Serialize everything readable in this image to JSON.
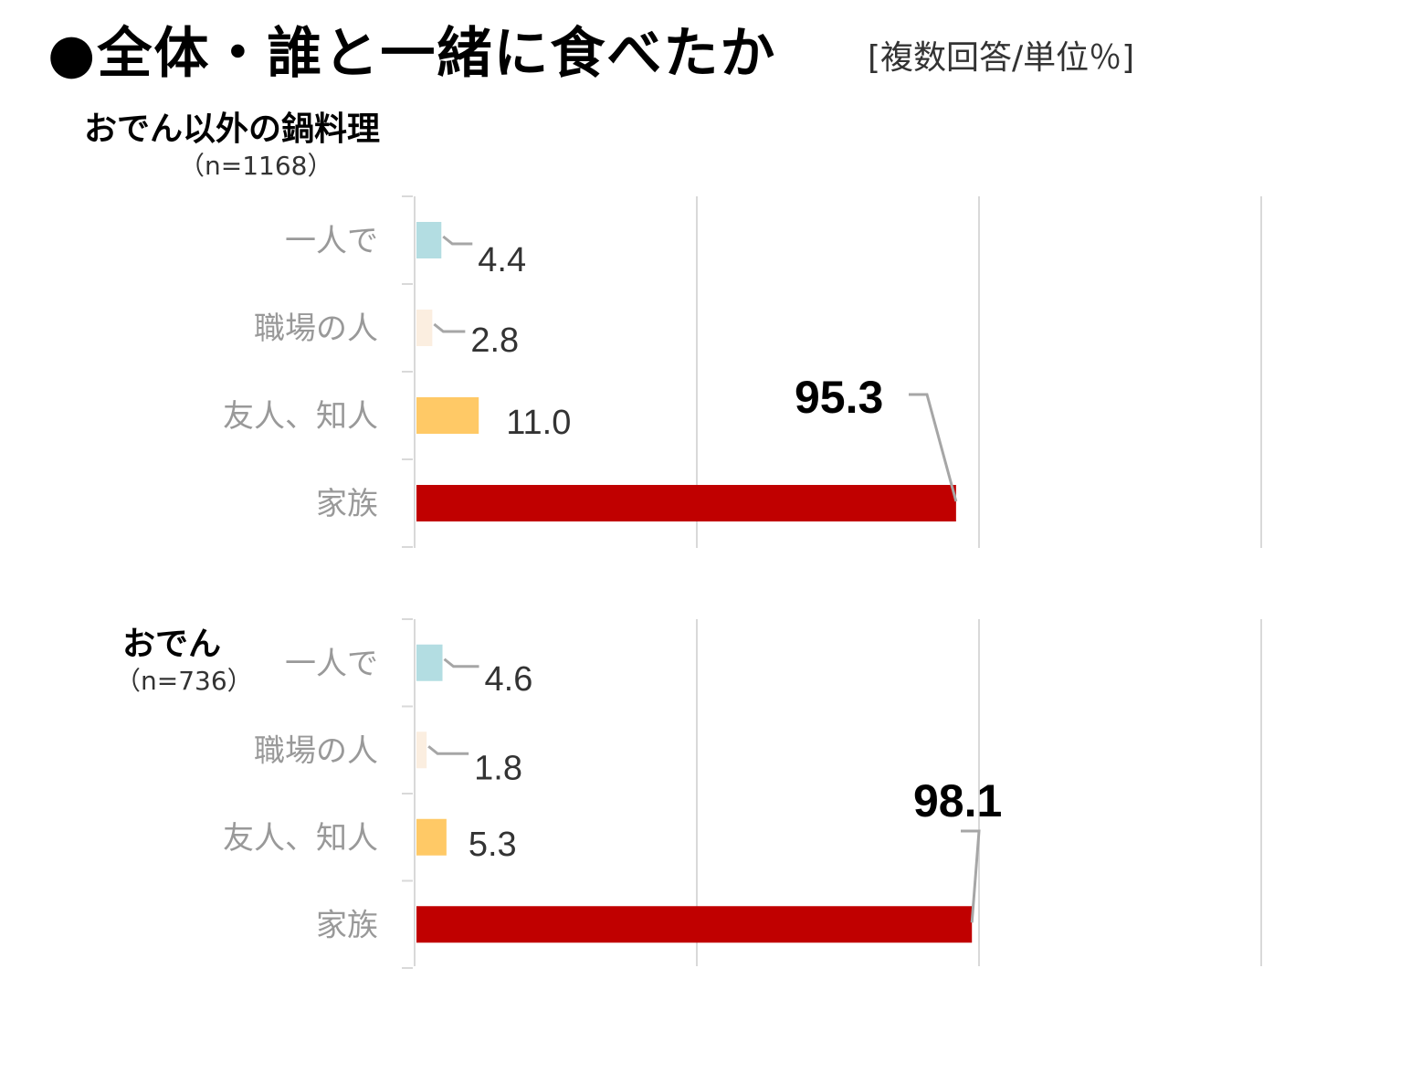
{
  "header": {
    "title": "●全体・誰と一緒に食べたか",
    "unit_note": "[複数回答/単位％]"
  },
  "colors": {
    "一人で": "#b3dde2",
    "職場の人": "#fbeee0",
    "友人、知人": "#ffc966",
    "家族": "#c00000",
    "gridline": "#d9d9d9",
    "leader": "#a6a6a6"
  },
  "chart_data": [
    {
      "type": "bar",
      "orientation": "horizontal",
      "title": "おでん以外の鍋料理",
      "subtitle": "（n=1168）",
      "categories": [
        "一人で",
        "職場の人",
        "友人、知人",
        "家族"
      ],
      "values": [
        4.4,
        2.8,
        11.0,
        95.3
      ],
      "value_labels": [
        "4.4",
        "2.8",
        "11.0",
        "95.3"
      ],
      "xlim": [
        0,
        150
      ],
      "grid": true,
      "gridlines": [
        0,
        50,
        100,
        150
      ]
    },
    {
      "type": "bar",
      "orientation": "horizontal",
      "title": "おでん",
      "subtitle": "（n=736）",
      "categories": [
        "一人で",
        "職場の人",
        "友人、知人",
        "家族"
      ],
      "values": [
        4.6,
        1.8,
        5.3,
        98.1
      ],
      "value_labels": [
        "4.6",
        "1.8",
        "5.3",
        "98.1"
      ],
      "xlim": [
        0,
        150
      ],
      "grid": true,
      "gridlines": [
        0,
        50,
        100,
        150
      ]
    }
  ]
}
